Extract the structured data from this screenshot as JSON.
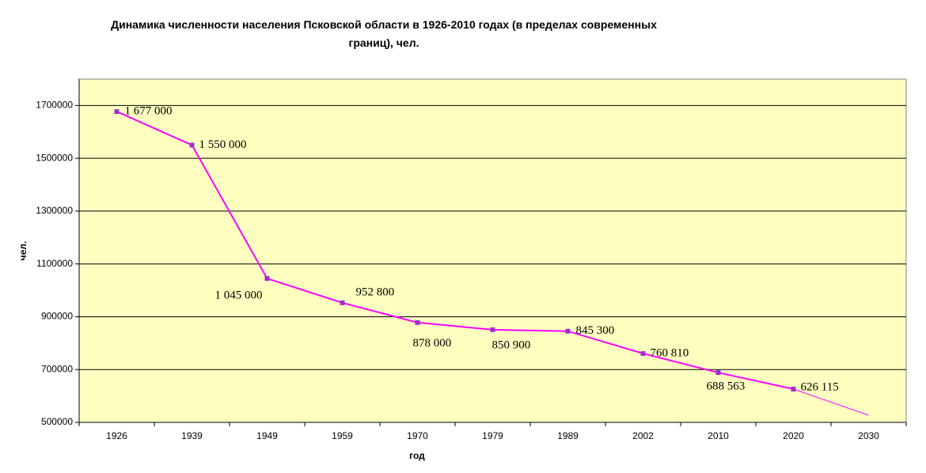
{
  "chart_data": {
    "type": "line",
    "title": "Динамика численности населения Псковской области в 1926-2010 годах (в пределах современных границ), чел.",
    "x_label": "год",
    "y_label": "чел.",
    "categories": [
      "1926",
      "1939",
      "1949",
      "1959",
      "1970",
      "1979",
      "1989",
      "2002",
      "2010",
      "2020",
      "2030"
    ],
    "series": [
      {
        "color": "#ff00ff",
        "marker_color": "#9933cc",
        "values": [
          1677000,
          1550000,
          1045000,
          952800,
          878000,
          850900,
          845300,
          760810,
          688563,
          626115,
          null
        ],
        "value_labels": [
          "1 677 000",
          "1 550 000",
          "1 045 000",
          "952 800",
          "878 000",
          "850 900",
          "845 300",
          "760 810",
          "688 563",
          "626 115",
          null
        ]
      },
      {
        "color": "#ff00ff",
        "values": [
          null,
          null,
          null,
          null,
          null,
          null,
          null,
          null,
          null,
          626115,
          527000
        ]
      }
    ],
    "ylim": [
      500000,
      1800000
    ],
    "yticks": [
      500000,
      700000,
      900000,
      1100000,
      1300000,
      1500000,
      1700000
    ],
    "grid": true,
    "plot_background": "#ffffc0"
  }
}
